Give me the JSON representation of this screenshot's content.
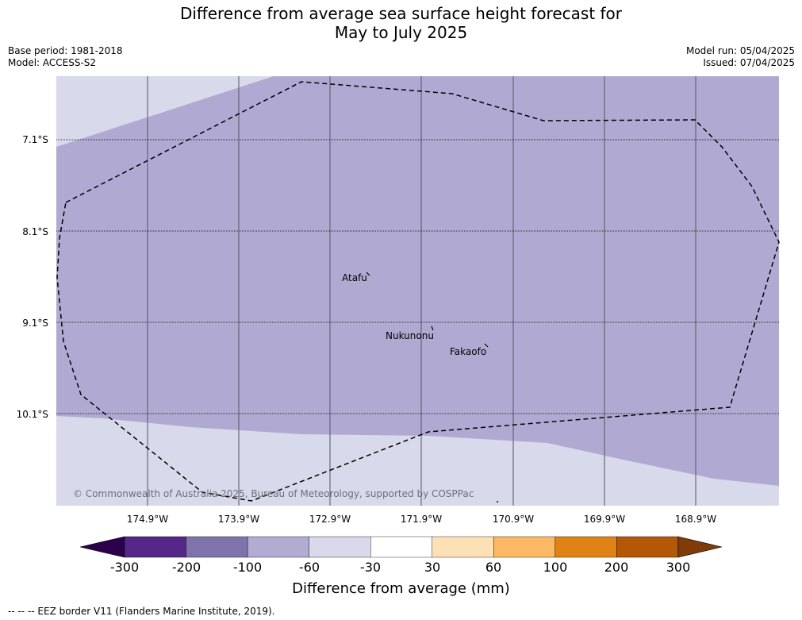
{
  "title": {
    "line1": "Difference from average sea surface height forecast for",
    "line2": "May to July 2025"
  },
  "meta": {
    "base_period": "Base period: 1981-2018",
    "model": "Model: ACCESS-S2",
    "model_run": "Model run: 05/04/2025",
    "issued": "Issued: 07/04/2025"
  },
  "map": {
    "lat_labels": [
      "7.1°S",
      "8.1°S",
      "9.1°S",
      "10.1°S"
    ],
    "lon_labels": [
      "174.9°W",
      "173.9°W",
      "172.9°W",
      "171.9°W",
      "170.9°W",
      "169.9°W",
      "168.9°W"
    ],
    "places": [
      "Atafu",
      "Nukunonu",
      "Fakaofo"
    ],
    "copyright": "© Commonwealth of Australia 2025, Bureau of Meteorology, supported by COSPPac",
    "colors": {
      "band_minus_60_to_minus_100": "#b0aad2",
      "band_minus_30_to_minus_60": "#d8d9ea",
      "eez_border": "#000000"
    }
  },
  "colorbar": {
    "title": "Difference from average (mm)",
    "ticks": [
      "-300",
      "-200",
      "-100",
      "-60",
      "-30",
      "30",
      "60",
      "100",
      "200",
      "300"
    ],
    "under_color": "#2d004b",
    "over_color": "#7f3b08",
    "colors": [
      "#542788",
      "#8073ac",
      "#b2abd2",
      "#d8daeb",
      "#ffffff",
      "#fee0b6",
      "#fdb863",
      "#e08214",
      "#b35806"
    ]
  },
  "footnote": "--  --  -- EEZ border V11 (Flanders Marine Institute, 2019)."
}
